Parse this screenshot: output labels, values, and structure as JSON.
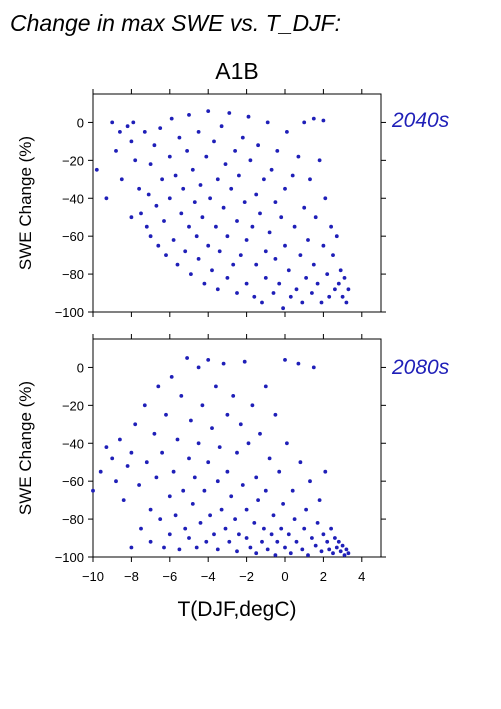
{
  "figure": {
    "title": "Change in max SWE vs. T_DJF:",
    "scenario": "A1B",
    "xlabel": "T(DJF,degC)",
    "marker_color": "#1f1fb8"
  },
  "chart_data": [
    {
      "type": "scatter",
      "panel_label": "2040s",
      "xlabel": "T(DJF,degC)",
      "ylabel": "SWE Change (%)",
      "xlim": [
        -10,
        5
      ],
      "ylim": [
        -100,
        15
      ],
      "xticks": [
        -10,
        -8,
        -6,
        -4,
        -2,
        0,
        2,
        4
      ],
      "yticks": [
        0,
        -20,
        -40,
        -60,
        -80,
        -100
      ],
      "xtick_labels": [
        "−10",
        "−8",
        "−6",
        "−4",
        "−2",
        "0",
        "2",
        "4"
      ],
      "ytick_labels": [
        "0",
        "−20",
        "−40",
        "−60",
        "−80",
        "−100"
      ],
      "grid": false,
      "series": [
        {
          "points": [
            [
              -9.8,
              -25
            ],
            [
              -9.3,
              -40
            ],
            [
              -9.0,
              0
            ],
            [
              -8.8,
              -15
            ],
            [
              -8.6,
              -5
            ],
            [
              -8.5,
              -30
            ],
            [
              -8.2,
              -2
            ],
            [
              -8.0,
              -10
            ],
            [
              -8.0,
              -50
            ],
            [
              -7.9,
              0
            ],
            [
              -7.8,
              -20
            ],
            [
              -7.6,
              -35
            ],
            [
              -7.5,
              -48
            ],
            [
              -7.3,
              -5
            ],
            [
              -7.2,
              -55
            ],
            [
              -7.1,
              -38
            ],
            [
              -7.0,
              -60
            ],
            [
              -7.0,
              -22
            ],
            [
              -6.8,
              -12
            ],
            [
              -6.7,
              -44
            ],
            [
              -6.6,
              -65
            ],
            [
              -6.5,
              -3
            ],
            [
              -6.4,
              -30
            ],
            [
              -6.3,
              -52
            ],
            [
              -6.2,
              -70
            ],
            [
              -6.0,
              -18
            ],
            [
              -6.0,
              -40
            ],
            [
              -5.9,
              2
            ],
            [
              -5.8,
              -62
            ],
            [
              -5.7,
              -28
            ],
            [
              -5.6,
              -75
            ],
            [
              -5.5,
              -8
            ],
            [
              -5.4,
              -48
            ],
            [
              -5.3,
              -35
            ],
            [
              -5.2,
              -68
            ],
            [
              -5.1,
              -15
            ],
            [
              -5.0,
              4
            ],
            [
              -5.0,
              -55
            ],
            [
              -4.9,
              -80
            ],
            [
              -4.8,
              -25
            ],
            [
              -4.7,
              -42
            ],
            [
              -4.6,
              -60
            ],
            [
              -4.5,
              -5
            ],
            [
              -4.5,
              -72
            ],
            [
              -4.4,
              -33
            ],
            [
              -4.3,
              -50
            ],
            [
              -4.2,
              -85
            ],
            [
              -4.1,
              -18
            ],
            [
              -4.0,
              6
            ],
            [
              -4.0,
              -65
            ],
            [
              -3.9,
              -40
            ],
            [
              -3.8,
              -78
            ],
            [
              -3.7,
              -10
            ],
            [
              -3.6,
              -55
            ],
            [
              -3.5,
              -30
            ],
            [
              -3.5,
              -88
            ],
            [
              -3.4,
              -68
            ],
            [
              -3.3,
              -2
            ],
            [
              -3.2,
              -45
            ],
            [
              -3.1,
              -22
            ],
            [
              -3.0,
              -82
            ],
            [
              -3.0,
              -60
            ],
            [
              -2.9,
              5
            ],
            [
              -2.8,
              -35
            ],
            [
              -2.7,
              -75
            ],
            [
              -2.6,
              -15
            ],
            [
              -2.5,
              -90
            ],
            [
              -2.5,
              -52
            ],
            [
              -2.4,
              -28
            ],
            [
              -2.3,
              -70
            ],
            [
              -2.2,
              -8
            ],
            [
              -2.1,
              -42
            ],
            [
              -2.0,
              -85
            ],
            [
              -2.0,
              -62
            ],
            [
              -1.9,
              3
            ],
            [
              -1.8,
              -20
            ],
            [
              -1.7,
              -55
            ],
            [
              -1.6,
              -92
            ],
            [
              -1.5,
              -38
            ],
            [
              -1.5,
              -75
            ],
            [
              -1.4,
              -12
            ],
            [
              -1.3,
              -48
            ],
            [
              -1.2,
              -95
            ],
            [
              -1.1,
              -30
            ],
            [
              -1.0,
              -68
            ],
            [
              -1.0,
              -82
            ],
            [
              -0.9,
              0
            ],
            [
              -0.8,
              -58
            ],
            [
              -0.7,
              -25
            ],
            [
              -0.6,
              -90
            ],
            [
              -0.5,
              -42
            ],
            [
              -0.5,
              -72
            ],
            [
              -0.4,
              -15
            ],
            [
              -0.3,
              -85
            ],
            [
              -0.2,
              -50
            ],
            [
              -0.1,
              -98
            ],
            [
              0.0,
              -35
            ],
            [
              0.0,
              -65
            ],
            [
              0.1,
              -5
            ],
            [
              0.2,
              -78
            ],
            [
              0.3,
              -92
            ],
            [
              0.4,
              -28
            ],
            [
              0.5,
              -55
            ],
            [
              0.6,
              -88
            ],
            [
              0.7,
              -18
            ],
            [
              0.8,
              -70
            ],
            [
              0.9,
              -95
            ],
            [
              1.0,
              -45
            ],
            [
              1.0,
              0
            ],
            [
              1.1,
              -82
            ],
            [
              1.2,
              -62
            ],
            [
              1.3,
              -30
            ],
            [
              1.4,
              -90
            ],
            [
              1.5,
              2
            ],
            [
              1.5,
              -75
            ],
            [
              1.6,
              -50
            ],
            [
              1.7,
              -85
            ],
            [
              1.8,
              -20
            ],
            [
              1.9,
              -95
            ],
            [
              2.0,
              -65
            ],
            [
              2.0,
              1
            ],
            [
              2.1,
              -40
            ],
            [
              2.2,
              -80
            ],
            [
              2.3,
              -92
            ],
            [
              2.4,
              -55
            ],
            [
              2.5,
              -70
            ],
            [
              2.6,
              -88
            ],
            [
              2.7,
              -60
            ],
            [
              2.8,
              -85
            ],
            [
              2.9,
              -78
            ],
            [
              3.0,
              -92
            ],
            [
              3.1,
              -82
            ],
            [
              3.2,
              -95
            ],
            [
              3.3,
              -88
            ]
          ]
        }
      ]
    },
    {
      "type": "scatter",
      "panel_label": "2080s",
      "xlabel": "T(DJF,degC)",
      "ylabel": "SWE Change (%)",
      "xlim": [
        -10,
        5
      ],
      "ylim": [
        -100,
        15
      ],
      "xticks": [
        -10,
        -8,
        -6,
        -4,
        -2,
        0,
        2,
        4
      ],
      "yticks": [
        0,
        -20,
        -40,
        -60,
        -80,
        -100
      ],
      "xtick_labels": [
        "−10",
        "−8",
        "−6",
        "−4",
        "−2",
        "0",
        "2",
        "4"
      ],
      "ytick_labels": [
        "0",
        "−20",
        "−40",
        "−60",
        "−80",
        "−100"
      ],
      "grid": false,
      "series": [
        {
          "points": [
            [
              -10.0,
              -65
            ],
            [
              -9.6,
              -55
            ],
            [
              -9.3,
              -42
            ],
            [
              -9.0,
              -48
            ],
            [
              -8.8,
              -60
            ],
            [
              -8.6,
              -38
            ],
            [
              -8.4,
              -70
            ],
            [
              -8.2,
              -52
            ],
            [
              -8.0,
              -45
            ],
            [
              -8.0,
              -95
            ],
            [
              -7.8,
              -30
            ],
            [
              -7.6,
              -62
            ],
            [
              -7.5,
              -85
            ],
            [
              -7.3,
              -20
            ],
            [
              -7.2,
              -50
            ],
            [
              -7.0,
              -75
            ],
            [
              -7.0,
              -92
            ],
            [
              -6.8,
              -35
            ],
            [
              -6.7,
              -58
            ],
            [
              -6.6,
              -10
            ],
            [
              -6.5,
              -80
            ],
            [
              -6.4,
              -45
            ],
            [
              -6.3,
              -95
            ],
            [
              -6.2,
              -25
            ],
            [
              -6.0,
              -68
            ],
            [
              -6.0,
              -88
            ],
            [
              -5.9,
              -5
            ],
            [
              -5.8,
              -55
            ],
            [
              -5.7,
              -78
            ],
            [
              -5.6,
              -38
            ],
            [
              -5.5,
              -96
            ],
            [
              -5.4,
              -15
            ],
            [
              -5.3,
              -65
            ],
            [
              -5.2,
              -85
            ],
            [
              -5.1,
              5
            ],
            [
              -5.0,
              -48
            ],
            [
              -5.0,
              -90
            ],
            [
              -4.9,
              -28
            ],
            [
              -4.8,
              -72
            ],
            [
              -4.7,
              -58
            ],
            [
              -4.6,
              -95
            ],
            [
              -4.5,
              0
            ],
            [
              -4.5,
              -40
            ],
            [
              -4.4,
              -82
            ],
            [
              -4.3,
              -20
            ],
            [
              -4.2,
              -65
            ],
            [
              -4.1,
              -92
            ],
            [
              -4.0,
              4
            ],
            [
              -4.0,
              -50
            ],
            [
              -3.9,
              -78
            ],
            [
              -3.8,
              -32
            ],
            [
              -3.7,
              -88
            ],
            [
              -3.6,
              -10
            ],
            [
              -3.5,
              -60
            ],
            [
              -3.5,
              -96
            ],
            [
              -3.4,
              -42
            ],
            [
              -3.3,
              -75
            ],
            [
              -3.2,
              2
            ],
            [
              -3.1,
              -85
            ],
            [
              -3.0,
              -25
            ],
            [
              -3.0,
              -55
            ],
            [
              -2.9,
              -92
            ],
            [
              -2.8,
              -68
            ],
            [
              -2.7,
              -15
            ],
            [
              -2.6,
              -80
            ],
            [
              -2.5,
              -45
            ],
            [
              -2.5,
              -97
            ],
            [
              -2.4,
              -88
            ],
            [
              -2.3,
              -30
            ],
            [
              -2.2,
              -62
            ],
            [
              -2.1,
              3
            ],
            [
              -2.0,
              -90
            ],
            [
              -2.0,
              -75
            ],
            [
              -1.9,
              -40
            ],
            [
              -1.8,
              -95
            ],
            [
              -1.7,
              -20
            ],
            [
              -1.6,
              -82
            ],
            [
              -1.5,
              -58
            ],
            [
              -1.5,
              -98
            ],
            [
              -1.4,
              -70
            ],
            [
              -1.3,
              -35
            ],
            [
              -1.2,
              -92
            ],
            [
              -1.1,
              -85
            ],
            [
              -1.0,
              -10
            ],
            [
              -1.0,
              -65
            ],
            [
              -0.9,
              -96
            ],
            [
              -0.8,
              -48
            ],
            [
              -0.7,
              -88
            ],
            [
              -0.6,
              -78
            ],
            [
              -0.5,
              -25
            ],
            [
              -0.5,
              -99
            ],
            [
              -0.4,
              -92
            ],
            [
              -0.3,
              -55
            ],
            [
              -0.2,
              -85
            ],
            [
              -0.1,
              -72
            ],
            [
              0.0,
              4
            ],
            [
              0.0,
              -95
            ],
            [
              0.1,
              -40
            ],
            [
              0.2,
              -88
            ],
            [
              0.3,
              -98
            ],
            [
              0.4,
              -65
            ],
            [
              0.5,
              -80
            ],
            [
              0.6,
              -92
            ],
            [
              0.7,
              2
            ],
            [
              0.8,
              -50
            ],
            [
              0.9,
              -96
            ],
            [
              1.0,
              -85
            ],
            [
              1.1,
              -75
            ],
            [
              1.2,
              -99
            ],
            [
              1.3,
              -60
            ],
            [
              1.4,
              -90
            ],
            [
              1.5,
              0
            ],
            [
              1.6,
              -94
            ],
            [
              1.7,
              -82
            ],
            [
              1.8,
              -70
            ],
            [
              1.9,
              -97
            ],
            [
              2.0,
              -88
            ],
            [
              2.1,
              -55
            ],
            [
              2.2,
              -92
            ],
            [
              2.3,
              -96
            ],
            [
              2.4,
              -85
            ],
            [
              2.5,
              -98
            ],
            [
              2.6,
              -90
            ],
            [
              2.7,
              -95
            ],
            [
              2.8,
              -92
            ],
            [
              2.9,
              -97
            ],
            [
              3.0,
              -94
            ],
            [
              3.1,
              -99
            ],
            [
              3.2,
              -96
            ],
            [
              3.3,
              -98
            ]
          ]
        }
      ]
    }
  ]
}
